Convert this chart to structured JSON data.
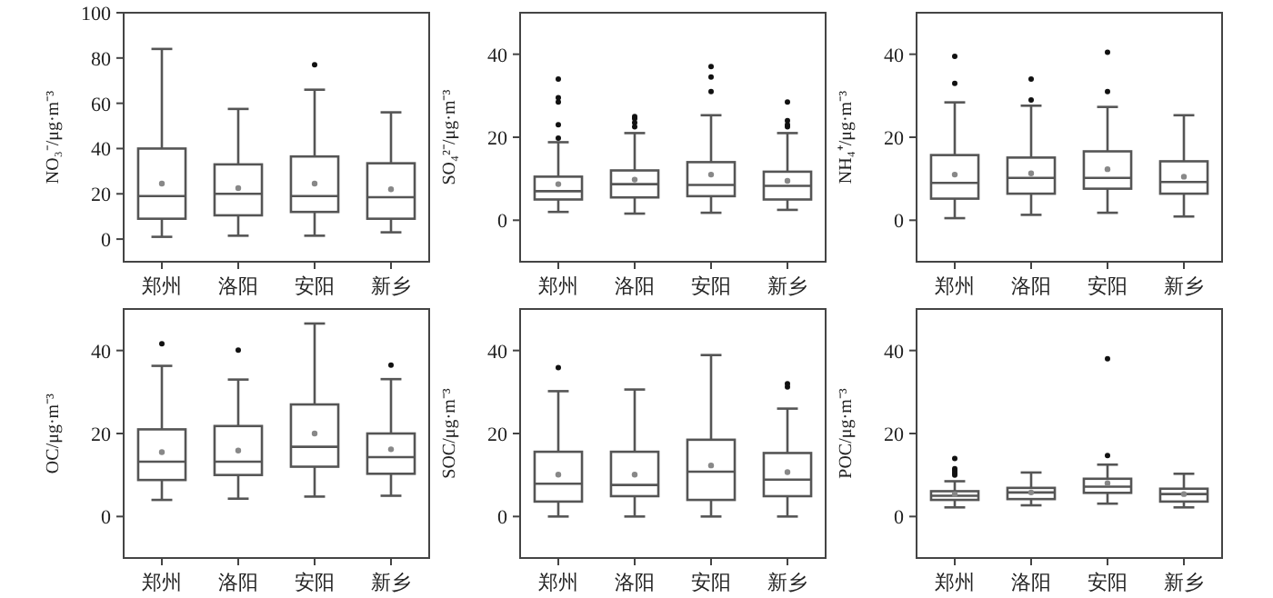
{
  "chart_data": [
    {
      "type": "box",
      "ylabel": "NO₃⁻/μg·m⁻³",
      "categories": [
        "郑州",
        "洛阳",
        "安阳",
        "新乡"
      ],
      "ylim": [
        -10,
        100
      ],
      "yticks": [
        0,
        20,
        40,
        60,
        80,
        100
      ],
      "boxes": [
        {
          "low": 1,
          "q1": 9,
          "median": 19,
          "q3": 40,
          "high": 84,
          "mean": 24.5
        },
        {
          "low": 1.5,
          "q1": 10.5,
          "median": 20,
          "q3": 33,
          "high": 57.5,
          "mean": 22.5
        },
        {
          "low": 1.5,
          "q1": 12,
          "median": 19,
          "q3": 36.5,
          "high": 66,
          "mean": 24.5,
          "outliers": [
            77
          ]
        },
        {
          "low": 3,
          "q1": 9,
          "median": 18.5,
          "q3": 33.5,
          "high": 56,
          "mean": 22
        }
      ]
    },
    {
      "type": "box",
      "ylabel": "SO₄²⁻/μg·m⁻³",
      "categories": [
        "郑州",
        "洛阳",
        "安阳",
        "新乡"
      ],
      "ylim": [
        -10,
        50
      ],
      "yticks": [
        0,
        20,
        40
      ],
      "boxes": [
        {
          "low": 2,
          "q1": 5,
          "median": 7,
          "q3": 10.5,
          "high": 18.8,
          "mean": 8.7,
          "outliers": [
            19.8,
            23,
            28.5,
            29.5,
            34
          ]
        },
        {
          "low": 1.6,
          "q1": 5.5,
          "median": 8.7,
          "q3": 12,
          "high": 21,
          "mean": 9.8,
          "outliers": [
            22.5,
            23.5,
            24.5,
            25
          ]
        },
        {
          "low": 1.8,
          "q1": 5.8,
          "median": 8.5,
          "q3": 14,
          "high": 25.3,
          "mean": 11,
          "outliers": [
            31,
            34.5,
            37
          ]
        },
        {
          "low": 2.5,
          "q1": 5,
          "median": 8.3,
          "q3": 11.7,
          "high": 21,
          "mean": 9.5,
          "outliers": [
            22.5,
            23,
            24,
            28.5
          ]
        }
      ]
    },
    {
      "type": "box",
      "ylabel": "NH₄⁺/μg·m⁻³",
      "categories": [
        "郑州",
        "洛阳",
        "安阳",
        "新乡"
      ],
      "ylim": [
        -10,
        50
      ],
      "yticks": [
        0,
        20,
        40
      ],
      "boxes": [
        {
          "low": 0.5,
          "q1": 5.2,
          "median": 9,
          "q3": 15.7,
          "high": 28.4,
          "mean": 11,
          "outliers": [
            33,
            39.5
          ]
        },
        {
          "low": 1.3,
          "q1": 6.4,
          "median": 10.2,
          "q3": 15.1,
          "high": 27.6,
          "mean": 11.3,
          "outliers": [
            29,
            34
          ]
        },
        {
          "low": 1.8,
          "q1": 7.6,
          "median": 10.2,
          "q3": 16.6,
          "high": 27.3,
          "mean": 12.3,
          "outliers": [
            31,
            40.5
          ]
        },
        {
          "low": 0.9,
          "q1": 6.4,
          "median": 9.2,
          "q3": 14.2,
          "high": 25.3,
          "mean": 10.5
        }
      ]
    },
    {
      "type": "box",
      "ylabel": "OC/μg·m⁻³",
      "categories": [
        "郑州",
        "洛阳",
        "安阳",
        "新乡"
      ],
      "ylim": [
        -10,
        50
      ],
      "yticks": [
        0,
        20,
        40
      ],
      "boxes": [
        {
          "low": 4,
          "q1": 8.8,
          "median": 13.2,
          "q3": 21,
          "high": 36.3,
          "mean": 15.5,
          "outliers": [
            41.6
          ]
        },
        {
          "low": 4.3,
          "q1": 10,
          "median": 13.2,
          "q3": 21.8,
          "high": 33,
          "mean": 15.9,
          "outliers": [
            40.1
          ]
        },
        {
          "low": 4.8,
          "q1": 12,
          "median": 16.8,
          "q3": 27,
          "high": 46.5,
          "mean": 20
        },
        {
          "low": 5,
          "q1": 10.3,
          "median": 14.3,
          "q3": 20,
          "high": 33.1,
          "mean": 16.2,
          "outliers": [
            36.5
          ]
        }
      ]
    },
    {
      "type": "box",
      "ylabel": "SOC/μg·m⁻³",
      "categories": [
        "郑州",
        "洛阳",
        "安阳",
        "新乡"
      ],
      "ylim": [
        -10,
        50
      ],
      "yticks": [
        0,
        20,
        40
      ],
      "boxes": [
        {
          "low": 0,
          "q1": 3.6,
          "median": 7.9,
          "q3": 15.6,
          "high": 30.2,
          "mean": 10.1,
          "outliers": [
            35.9
          ]
        },
        {
          "low": 0,
          "q1": 4.9,
          "median": 7.6,
          "q3": 15.6,
          "high": 30.6,
          "mean": 10.1
        },
        {
          "low": 0,
          "q1": 4,
          "median": 10.8,
          "q3": 18.5,
          "high": 38.9,
          "mean": 12.3
        },
        {
          "low": 0,
          "q1": 4.9,
          "median": 8.9,
          "q3": 15.3,
          "high": 26,
          "mean": 10.7,
          "outliers": [
            31.2,
            32
          ]
        }
      ]
    },
    {
      "type": "box",
      "ylabel": "POC/μg·m⁻³",
      "categories": [
        "郑州",
        "洛阳",
        "安阳",
        "新乡"
      ],
      "ylim": [
        -10,
        50
      ],
      "yticks": [
        0,
        20,
        40
      ],
      "boxes": [
        {
          "low": 2.2,
          "q1": 4,
          "median": 5,
          "q3": 6.1,
          "high": 8.5,
          "mean": 5.4,
          "outliers": [
            10,
            10.5,
            11,
            11.5,
            14
          ]
        },
        {
          "low": 2.7,
          "q1": 4.2,
          "median": 5.8,
          "q3": 6.9,
          "high": 10.6,
          "mean": 5.8
        },
        {
          "low": 3.1,
          "q1": 5.7,
          "median": 7.2,
          "q3": 9.1,
          "high": 12.5,
          "mean": 8,
          "outliers": [
            14.7,
            38
          ]
        },
        {
          "low": 2.2,
          "q1": 3.6,
          "median": 5.4,
          "q3": 6.7,
          "high": 10.3,
          "mean": 5.4
        }
      ]
    }
  ]
}
